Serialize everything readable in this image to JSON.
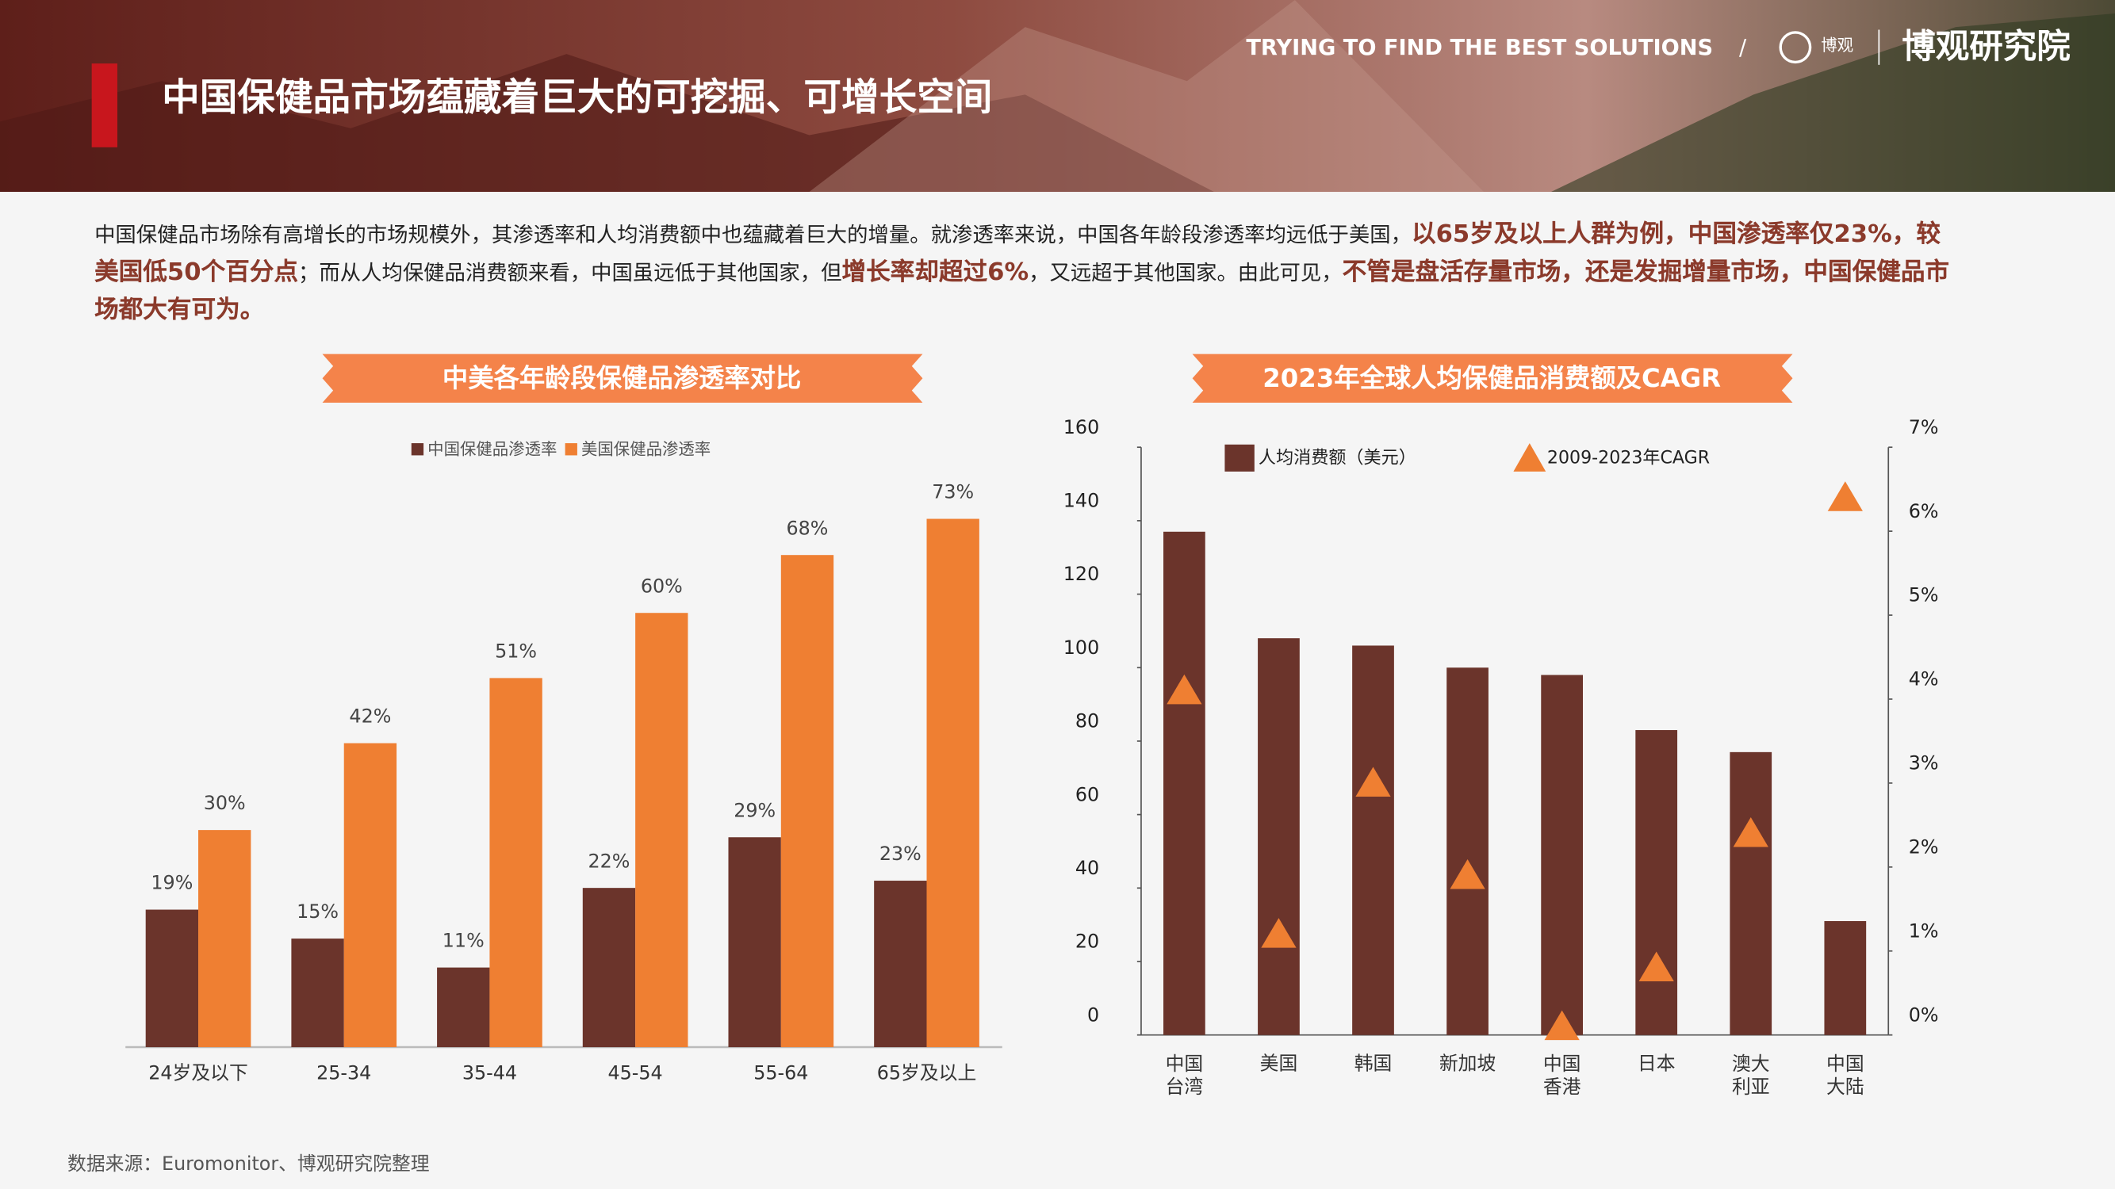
{
  "header": {
    "title": "中国保健品市场蕴藏着巨大的可挖掘、可增长空间",
    "tagline": "TRYING TO FIND THE BEST SOLUTIONS",
    "separator": "/",
    "logo_mark": "博观",
    "brand": "博观研究院"
  },
  "paragraph": [
    {
      "text": "中国保健品市场除有高增长的市场规模外，其渗透率和人均消费额中也蕴藏着巨大的增量。就渗透率来说，中国各年龄段渗透率均远低于美国，",
      "emphasis": false
    },
    {
      "text": "以65岁及以上人群为例，中国渗透率仅23%，较美国低50个百分点",
      "emphasis": true
    },
    {
      "text": "；而从人均保健品消费额来看，中国虽远低于其他国家，但",
      "emphasis": false
    },
    {
      "text": "增长率却超过6%",
      "emphasis": true
    },
    {
      "text": "，又远超于其他国家。由此可见，",
      "emphasis": false
    },
    {
      "text": "不管是盘活存量市场，还是发掘增量市场，中国保健品市场都大有可为。",
      "emphasis": true
    }
  ],
  "source": "数据来源：Euromonitor、博观研究院整理",
  "chart_data": [
    {
      "type": "bar",
      "title": "中美各年龄段保健品渗透率对比",
      "categories": [
        "24岁及以下",
        "25-34",
        "35-44",
        "45-54",
        "55-64",
        "65岁及以上"
      ],
      "series": [
        {
          "name": "中国保健品渗透率",
          "color": "#6b342b",
          "values": [
            19,
            15,
            11,
            22,
            29,
            23
          ],
          "value_labels": [
            "19%",
            "15%",
            "11%",
            "22%",
            "29%",
            "23%"
          ]
        },
        {
          "name": "美国保健品渗透率",
          "color": "#ef7f32",
          "values": [
            30,
            42,
            51,
            60,
            68,
            73
          ],
          "value_labels": [
            "30%",
            "42%",
            "51%",
            "60%",
            "68%",
            "73%"
          ]
        }
      ],
      "legend": "top"
    },
    {
      "type": "combo",
      "title": "2023年全球人均保健品消费额及CAGR",
      "categories": [
        "中国\n台湾",
        "美国",
        "韩国",
        "新加坡",
        "中国\n香港",
        "日本",
        "澳大\n利亚",
        "中国\n大陆"
      ],
      "series": [
        {
          "name": "人均消费额（美元）",
          "color": "#6b342b",
          "type": "bar",
          "values": [
            137,
            108,
            106,
            100,
            98,
            83,
            77,
            31
          ]
        },
        {
          "name": "2009-2023年CAGR",
          "color": "#ef7f32",
          "type": "scatter",
          "marker": "triangle",
          "axis": "y2",
          "values": [
            4.1,
            1.2,
            3.0,
            1.9,
            0.1,
            0.8,
            2.4,
            6.4
          ]
        }
      ],
      "ylim": [
        0,
        160
      ],
      "yticks": [
        0,
        20,
        40,
        60,
        80,
        100,
        120,
        140,
        160
      ],
      "y2lim": [
        0,
        7
      ],
      "y2ticks": [
        {
          "value": 0,
          "label": "0%"
        },
        {
          "value": 1,
          "label": "1%"
        },
        {
          "value": 2,
          "label": "2%"
        },
        {
          "value": 3,
          "label": "3%"
        },
        {
          "value": 4,
          "label": "4%"
        },
        {
          "value": 5,
          "label": "5%"
        },
        {
          "value": 6,
          "label": "6%"
        },
        {
          "value": 7,
          "label": "7%"
        }
      ],
      "legend": "top"
    }
  ]
}
